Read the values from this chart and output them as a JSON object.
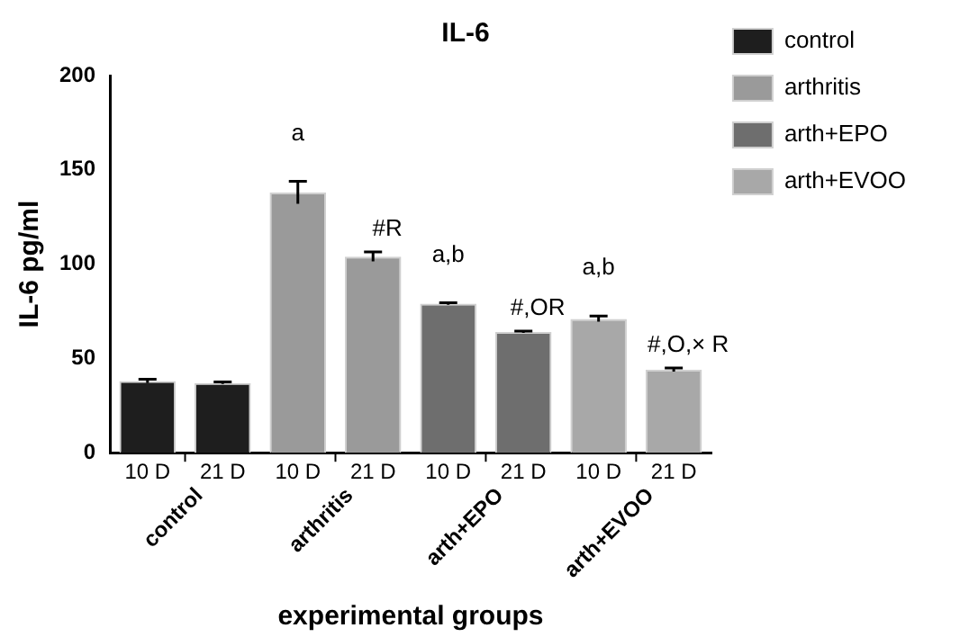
{
  "chart_data": {
    "type": "bar",
    "title": "IL-6",
    "xlabel": "experimental groups",
    "ylabel": "IL-6 pg/ml",
    "categories": [
      "10 D",
      "21 D",
      "10 D",
      "21 D",
      "10 D",
      "21 D",
      "10 D",
      "21 D"
    ],
    "series": [
      {
        "name": "control",
        "color": "#1e1e1e",
        "values": [
          38,
          37,
          null,
          null,
          null,
          null,
          null,
          null
        ],
        "errors": [
          1,
          0.5,
          null,
          null,
          null,
          null,
          null,
          null
        ]
      },
      {
        "name": "arthritis",
        "color": "#9a9a9a",
        "values": [
          null,
          null,
          138,
          104,
          null,
          null,
          null,
          null
        ],
        "errors": [
          null,
          null,
          6,
          2.5,
          null,
          null,
          null,
          null
        ]
      },
      {
        "name": "arth+EPO",
        "color": "#6e6e6e",
        "values": [
          null,
          null,
          null,
          null,
          79,
          64,
          null,
          null
        ],
        "errors": [
          null,
          null,
          null,
          null,
          0.5,
          0.5,
          null,
          null
        ]
      },
      {
        "name": "arth+EVOO",
        "color": "#a8a8a8",
        "values": [
          null,
          null,
          null,
          null,
          null,
          null,
          71,
          44
        ],
        "errors": [
          null,
          null,
          null,
          null,
          null,
          null,
          1.5,
          1
        ]
      }
    ],
    "annotations": [
      "a",
      "#R",
      "a,b",
      "#,OR",
      "a,b",
      "#,O,× R"
    ],
    "ylim": [
      0,
      200
    ],
    "yticks": [
      0,
      50,
      100,
      150,
      200
    ],
    "grid": false,
    "legend": "top right"
  }
}
